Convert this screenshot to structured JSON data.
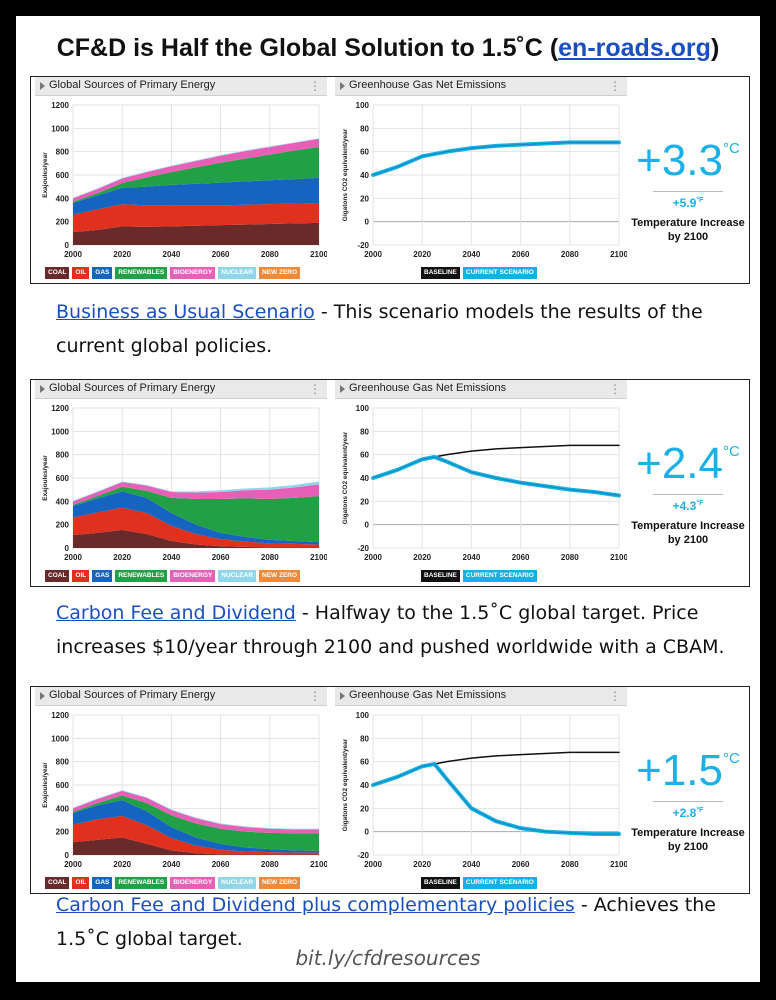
{
  "title": {
    "text": "CF&D is Half the Global Solution to 1.5˚C",
    "link_open": "(",
    "link": "en-roads.org",
    "link_close": ")"
  },
  "energy_chart_title": "Global Sources of Primary Energy",
  "emissions_chart_title": "Greenhouse Gas Net Emissions",
  "menu_glyph": "⋮",
  "energy_legend": [
    "COAL",
    "OIL",
    "GAS",
    "RENEWABLES",
    "BIOENERGY",
    "NUCLEAR",
    "NEW ZERO"
  ],
  "emissions_legend": [
    "BASELINE",
    "CURRENT SCENARIO"
  ],
  "temperature_label": "Temperature Increase by 2100",
  "colors": {
    "coal": "#6b2a2a",
    "oil": "#e0301e",
    "gas": "#1565c0",
    "renewables": "#22a045",
    "bioenergy": "#e660b8",
    "nuclear": "#8fd6ea",
    "new_zero": "#f08a38",
    "baseline": "#111111",
    "current_scenario": "#16b0e6",
    "temp_text": "#1ab0e8"
  },
  "scenarios": [
    {
      "link_text": "Business as Usual Scenario",
      "description": " - This scenario models the results of the current global policies.",
      "temp_c": "+3.3",
      "temp_c_unit": "°C",
      "temp_f": "+5.9",
      "temp_f_unit": "°F"
    },
    {
      "link_text": "Carbon Fee and Dividend",
      "description": " - Halfway to the 1.5˚C global target. Price increases $10/year through 2100 and pushed worldwide with a CBAM.",
      "temp_c": "+2.4",
      "temp_c_unit": "°C",
      "temp_f": "+4.3",
      "temp_f_unit": "°F"
    },
    {
      "link_text": "Carbon Fee and Dividend plus complementary policies",
      "description": " - Achieves the 1.5˚C global target.",
      "temp_c": "+1.5",
      "temp_c_unit": "°C",
      "temp_f": "+2.8",
      "temp_f_unit": "°F"
    }
  ],
  "footer": "bit.ly/cfdresources",
  "chart_data": [
    {
      "type": "area",
      "title": "Global Sources of Primary Energy",
      "ylabel": "Exajoules/year",
      "x": [
        2000,
        2010,
        2020,
        2030,
        2040,
        2050,
        2060,
        2070,
        2080,
        2090,
        2100
      ],
      "xticks": [
        2000,
        2020,
        2040,
        2060,
        2080,
        2100
      ],
      "yticks": [
        0,
        200,
        400,
        600,
        800,
        1000,
        1200
      ],
      "ylim": [
        0,
        1200
      ],
      "series": [
        {
          "name": "COAL",
          "values": [
            110,
            130,
            160,
            155,
            160,
            165,
            170,
            175,
            180,
            185,
            190
          ]
        },
        {
          "name": "OIL",
          "values": [
            150,
            175,
            190,
            185,
            180,
            175,
            170,
            170,
            170,
            170,
            170
          ]
        },
        {
          "name": "GAS",
          "values": [
            100,
            120,
            140,
            160,
            175,
            185,
            195,
            200,
            205,
            210,
            215
          ]
        },
        {
          "name": "RENEWABLES",
          "values": [
            10,
            20,
            40,
            80,
            110,
            140,
            170,
            195,
            220,
            245,
            265
          ]
        },
        {
          "name": "BIOENERGY",
          "values": [
            30,
            35,
            40,
            45,
            50,
            55,
            60,
            65,
            65,
            65,
            70
          ]
        },
        {
          "name": "NUCLEAR",
          "values": [
            5,
            5,
            5,
            5,
            5,
            5,
            5,
            5,
            5,
            5,
            5
          ]
        },
        {
          "name": "NEW ZERO",
          "values": [
            0,
            0,
            0,
            0,
            0,
            0,
            0,
            0,
            0,
            0,
            0
          ]
        }
      ]
    },
    {
      "type": "line",
      "title": "Greenhouse Gas Net Emissions",
      "ylabel": "Gigatons CO2 equivalent/year",
      "x": [
        2000,
        2010,
        2020,
        2030,
        2040,
        2050,
        2060,
        2070,
        2080,
        2090,
        2100
      ],
      "xticks": [
        2000,
        2020,
        2040,
        2060,
        2080,
        2100
      ],
      "yticks": [
        -20,
        0,
        20,
        40,
        60,
        80,
        100
      ],
      "ylim": [
        -20,
        100
      ],
      "series": [
        {
          "name": "BASELINE",
          "values": [
            40,
            47,
            56,
            60,
            63,
            65,
            66,
            67,
            68,
            68,
            68
          ]
        },
        {
          "name": "CURRENT SCENARIO",
          "values": [
            40,
            47,
            56,
            60,
            63,
            65,
            66,
            67,
            68,
            68,
            68
          ]
        }
      ]
    },
    {
      "type": "area",
      "title": "Global Sources of Primary Energy",
      "ylabel": "Exajoules/year",
      "x": [
        2000,
        2010,
        2020,
        2030,
        2040,
        2050,
        2060,
        2070,
        2080,
        2090,
        2100
      ],
      "xticks": [
        2000,
        2020,
        2040,
        2060,
        2080,
        2100
      ],
      "yticks": [
        0,
        200,
        400,
        600,
        800,
        1000,
        1200
      ],
      "ylim": [
        0,
        1200
      ],
      "series": [
        {
          "name": "COAL",
          "values": [
            110,
            130,
            155,
            120,
            60,
            30,
            15,
            10,
            5,
            5,
            5
          ]
        },
        {
          "name": "OIL",
          "values": [
            150,
            175,
            190,
            180,
            130,
            90,
            60,
            45,
            35,
            30,
            25
          ]
        },
        {
          "name": "GAS",
          "values": [
            100,
            120,
            140,
            130,
            110,
            80,
            55,
            40,
            30,
            25,
            20
          ]
        },
        {
          "name": "RENEWABLES",
          "values": [
            10,
            20,
            40,
            60,
            130,
            220,
            290,
            330,
            350,
            370,
            395
          ]
        },
        {
          "name": "BIOENERGY",
          "values": [
            30,
            35,
            40,
            45,
            50,
            55,
            60,
            70,
            80,
            90,
            100
          ]
        },
        {
          "name": "NUCLEAR",
          "values": [
            5,
            5,
            5,
            5,
            5,
            10,
            15,
            15,
            20,
            20,
            25
          ]
        },
        {
          "name": "NEW ZERO",
          "values": [
            0,
            0,
            0,
            0,
            0,
            0,
            0,
            0,
            0,
            0,
            0
          ]
        }
      ]
    },
    {
      "type": "line",
      "title": "Greenhouse Gas Net Emissions",
      "ylabel": "Gigatons CO2 equivalent/year",
      "x": [
        2000,
        2010,
        2020,
        2025,
        2030,
        2040,
        2050,
        2060,
        2070,
        2080,
        2090,
        2100
      ],
      "xticks": [
        2000,
        2020,
        2040,
        2060,
        2080,
        2100
      ],
      "yticks": [
        -20,
        0,
        20,
        40,
        60,
        80,
        100
      ],
      "ylim": [
        -20,
        100
      ],
      "series": [
        {
          "name": "BASELINE",
          "values": [
            40,
            47,
            56,
            58,
            60,
            63,
            65,
            66,
            67,
            68,
            68,
            68
          ]
        },
        {
          "name": "CURRENT SCENARIO",
          "values": [
            40,
            47,
            56,
            58,
            54,
            45,
            40,
            36,
            33,
            30,
            28,
            25
          ]
        }
      ]
    },
    {
      "type": "area",
      "title": "Global Sources of Primary Energy",
      "ylabel": "Exajoules/year",
      "x": [
        2000,
        2010,
        2020,
        2030,
        2040,
        2050,
        2060,
        2070,
        2080,
        2090,
        2100
      ],
      "xticks": [
        2000,
        2020,
        2040,
        2060,
        2080,
        2100
      ],
      "yticks": [
        0,
        200,
        400,
        600,
        800,
        1000,
        1200
      ],
      "ylim": [
        0,
        1200
      ],
      "series": [
        {
          "name": "COAL",
          "values": [
            110,
            130,
            150,
            95,
            40,
            15,
            5,
            5,
            5,
            5,
            5
          ]
        },
        {
          "name": "OIL",
          "values": [
            150,
            175,
            185,
            160,
            105,
            65,
            40,
            25,
            20,
            15,
            15
          ]
        },
        {
          "name": "GAS",
          "values": [
            100,
            120,
            135,
            120,
            95,
            70,
            50,
            35,
            25,
            20,
            15
          ]
        },
        {
          "name": "RENEWABLES",
          "values": [
            10,
            20,
            40,
            70,
            100,
            120,
            130,
            135,
            140,
            145,
            150
          ]
        },
        {
          "name": "BIOENERGY",
          "values": [
            30,
            35,
            40,
            45,
            45,
            45,
            40,
            40,
            35,
            35,
            35
          ]
        },
        {
          "name": "NUCLEAR",
          "values": [
            5,
            5,
            5,
            5,
            5,
            5,
            5,
            5,
            5,
            5,
            5
          ]
        },
        {
          "name": "NEW ZERO",
          "values": [
            0,
            0,
            0,
            0,
            0,
            0,
            0,
            0,
            0,
            0,
            0
          ]
        }
      ]
    },
    {
      "type": "line",
      "title": "Greenhouse Gas Net Emissions",
      "ylabel": "Gigatons CO2 equivalent/year",
      "x": [
        2000,
        2010,
        2020,
        2025,
        2030,
        2040,
        2050,
        2060,
        2070,
        2080,
        2090,
        2100
      ],
      "xticks": [
        2000,
        2020,
        2040,
        2060,
        2080,
        2100
      ],
      "yticks": [
        -20,
        0,
        20,
        40,
        60,
        80,
        100
      ],
      "ylim": [
        -20,
        100
      ],
      "series": [
        {
          "name": "BASELINE",
          "values": [
            40,
            47,
            56,
            58,
            60,
            63,
            65,
            66,
            67,
            68,
            68,
            68
          ]
        },
        {
          "name": "CURRENT SCENARIO",
          "values": [
            40,
            47,
            56,
            58,
            45,
            20,
            9,
            3,
            0,
            -1,
            -2,
            -2
          ]
        }
      ]
    }
  ]
}
